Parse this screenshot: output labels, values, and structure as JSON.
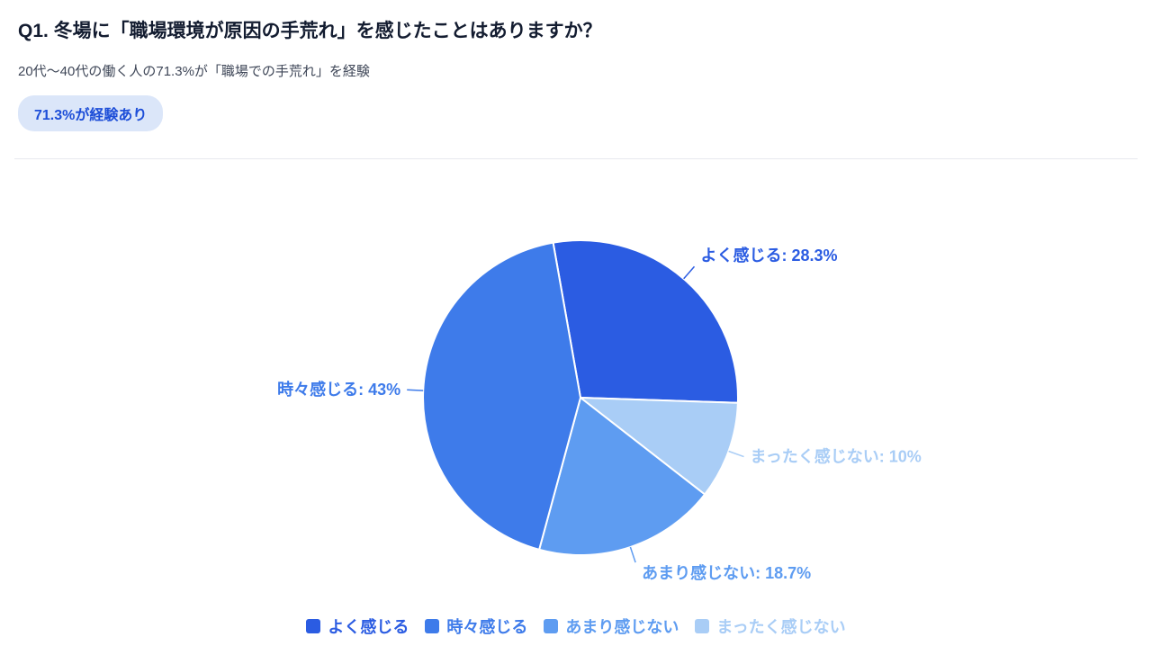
{
  "header": {
    "title": "Q1. 冬場に「職場環境が原因の手荒れ」を感じたことはありますか？",
    "subtitle": "20代〜40代の働く人の71.3%が「職場での手荒れ」を経験",
    "badge": "71.3%が経験あり"
  },
  "chart_data": {
    "type": "pie",
    "labels": [
      "よく感じる",
      "時々感じる",
      "あまり感じない",
      "まったく感じない"
    ],
    "values": [
      28.3,
      43,
      18.7,
      10
    ],
    "colors": [
      "#2b5ce2",
      "#3e7bea",
      "#5e9cf1",
      "#a9cdf6"
    ],
    "data_labels": [
      "よく感じる: 28.3%",
      "時々感じる: 43%",
      "あまり感じない: 18.7%",
      "まったく感じない: 10%"
    ],
    "draw_order": [
      0,
      3,
      2,
      1
    ],
    "start_angle_deg": -10,
    "legend_position": "bottom",
    "slice_border_color": "#ffffff"
  }
}
